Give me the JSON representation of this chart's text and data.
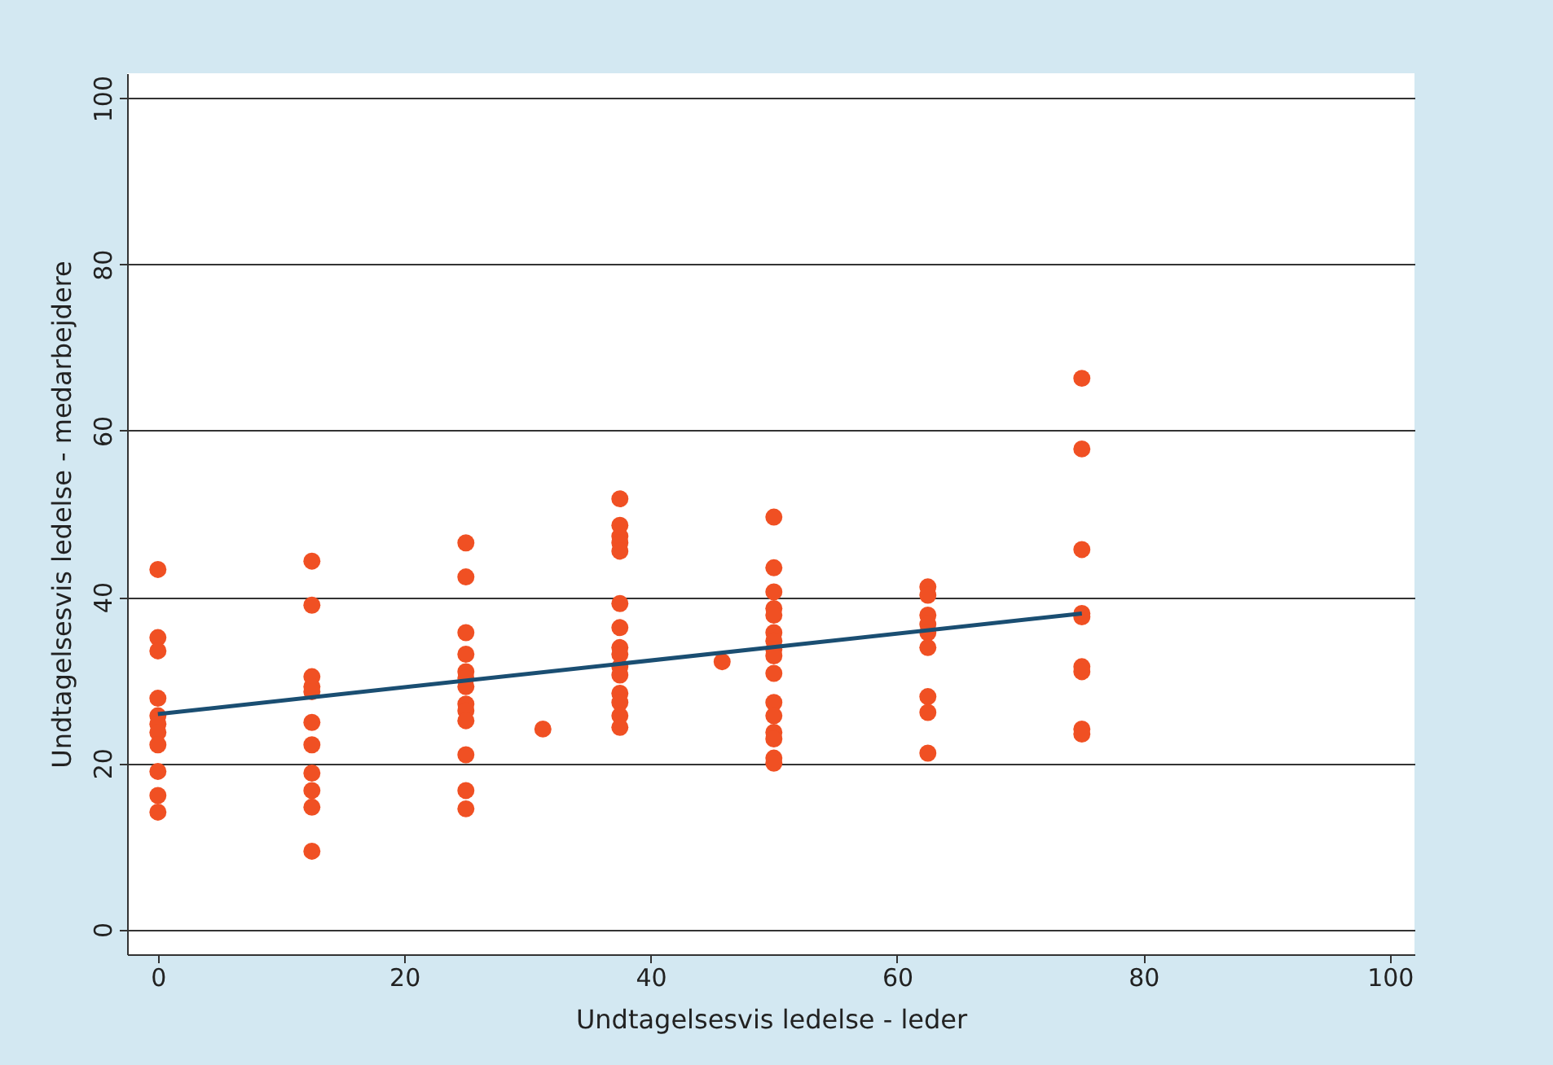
{
  "chart_data": {
    "type": "scatter",
    "xlabel": "Undtagelsesvis ledelse - leder",
    "ylabel": "Undtagelsesvis ledelse - medarbejdere",
    "xlim": [
      -2.5,
      102
    ],
    "ylim": [
      -3,
      103
    ],
    "xticks": [
      0,
      20,
      40,
      60,
      80,
      100
    ],
    "yticks": [
      0,
      20,
      40,
      60,
      80,
      100
    ],
    "grid": "y",
    "marker": "circle",
    "series": [
      {
        "color": "#f05023",
        "x": [
          0,
          0,
          0,
          0,
          0,
          0,
          0,
          0,
          0,
          0,
          0,
          12.5,
          12.5,
          12.5,
          12.5,
          12.5,
          12.5,
          12.5,
          12.5,
          12.5,
          12.5,
          12.5,
          25,
          25,
          25,
          25,
          25,
          25,
          25,
          25,
          25,
          25,
          25,
          25,
          25,
          31.25,
          37.5,
          37.5,
          37.5,
          37.5,
          37.5,
          37.5,
          37.5,
          37.5,
          37.5,
          37.5,
          37.5,
          37.5,
          37.5,
          37.5,
          37.5,
          45.8,
          50,
          50,
          50,
          50,
          50,
          50,
          50,
          50,
          50,
          50,
          50,
          50,
          50,
          50,
          50,
          50,
          62.5,
          62.5,
          62.5,
          62.5,
          62.5,
          62.5,
          62.5,
          62.5,
          62.5,
          75,
          75,
          75,
          75,
          75,
          75,
          75,
          75,
          75
        ],
        "values": [
          43.3,
          35.1,
          33.5,
          27.8,
          25.7,
          24.7,
          23.7,
          22.2,
          19.0,
          16.1,
          14.1,
          44.3,
          39.0,
          30.4,
          29.2,
          28.6,
          24.9,
          22.2,
          18.8,
          16.7,
          14.7,
          9.4,
          46.5,
          42.4,
          35.7,
          33.1,
          31.0,
          30.2,
          29.2,
          27.1,
          26.3,
          25.1,
          21.0,
          16.7,
          14.5,
          24.1,
          51.8,
          48.6,
          47.3,
          46.5,
          45.5,
          39.2,
          36.3,
          33.9,
          33.1,
          31.6,
          30.6,
          28.4,
          27.3,
          25.7,
          24.3,
          32.2,
          49.6,
          43.5,
          40.6,
          38.6,
          37.8,
          35.7,
          34.7,
          33.7,
          32.9,
          30.8,
          27.3,
          25.7,
          23.7,
          22.9,
          20.6,
          20.0,
          41.2,
          40.2,
          37.8,
          36.7,
          35.7,
          33.9,
          28.0,
          26.1,
          21.2,
          66.3,
          57.8,
          45.7,
          38.0,
          37.6,
          31.6,
          31.0,
          24.1,
          23.5
        ]
      },
      {
        "type": "line",
        "color": "#1a4e72",
        "x": [
          0,
          75
        ],
        "values": [
          25.9,
          38.0
        ],
        "marker": "none",
        "line_style": "solid"
      }
    ]
  }
}
